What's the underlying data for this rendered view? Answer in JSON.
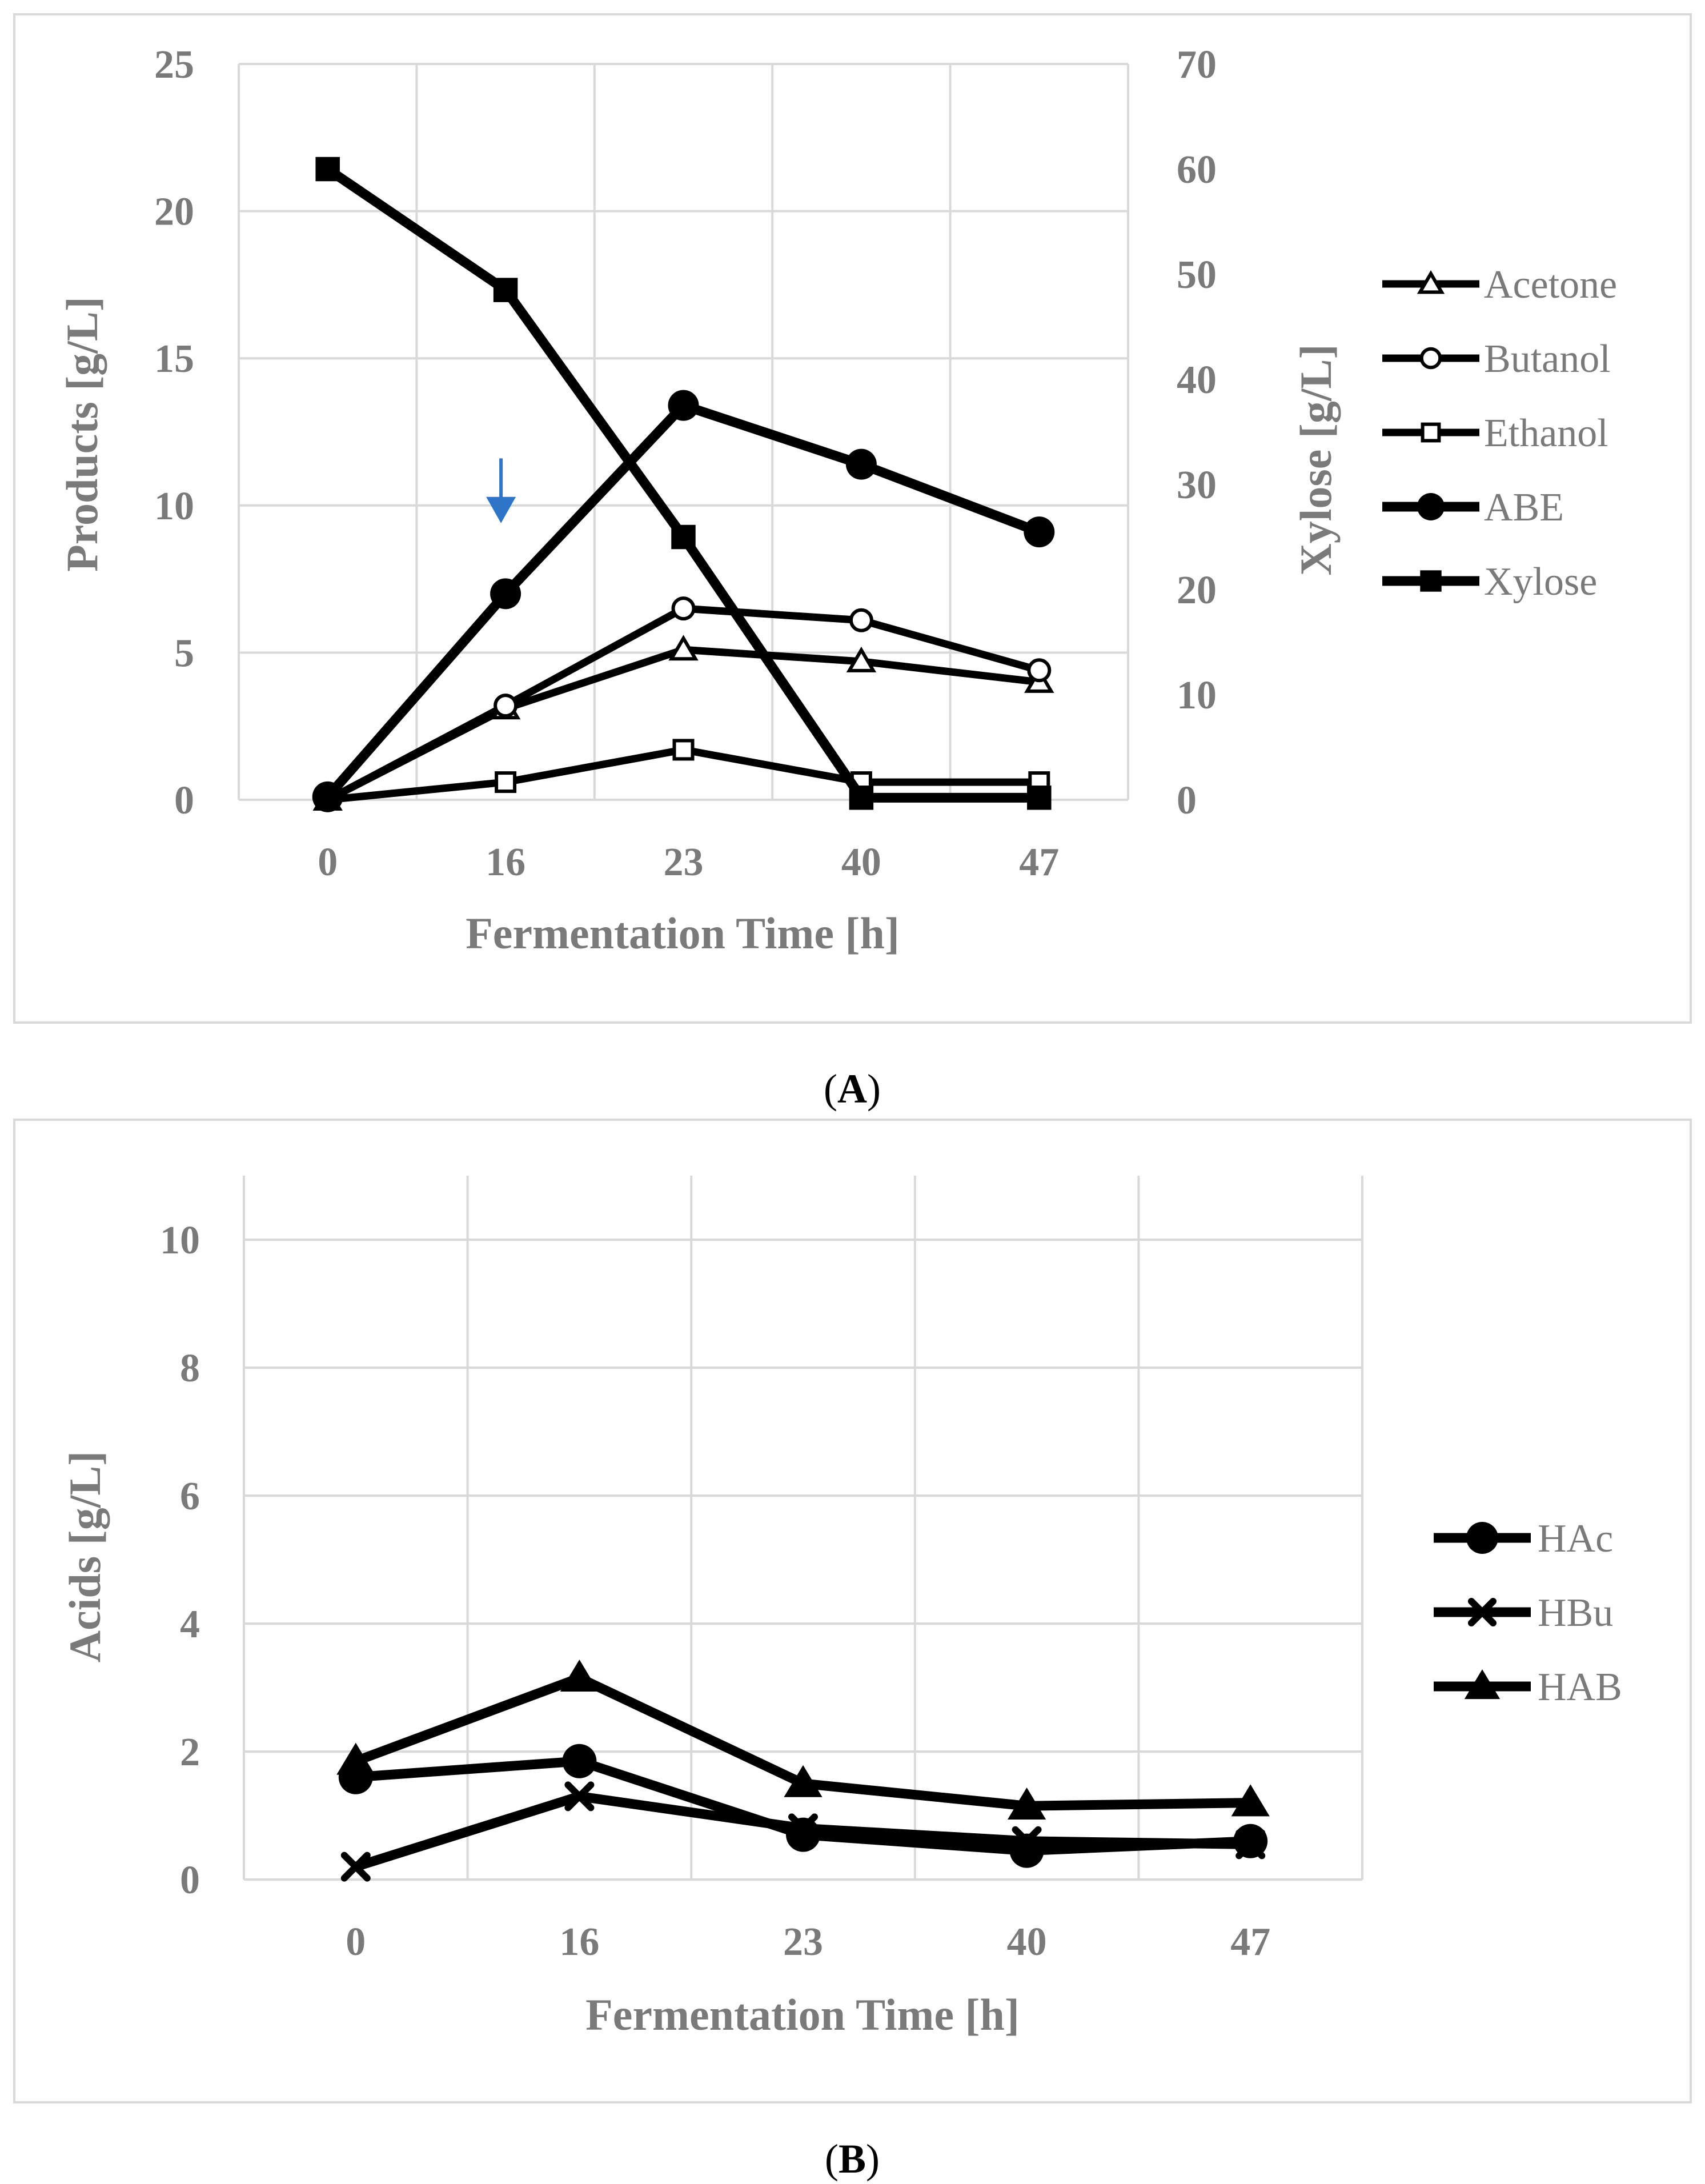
{
  "colors": {
    "series": "#000000",
    "axis_text": "#7a7a7a",
    "grid": "#d9d9d9",
    "arrow": "#2e75c8",
    "background": "#ffffff"
  },
  "panels": [
    {
      "label_open": "(",
      "label_letter": "A",
      "label_close": ")"
    },
    {
      "label_open": "(",
      "label_letter": "B",
      "label_close": ")"
    }
  ],
  "chart_data": [
    {
      "type": "line",
      "title": "",
      "categories": [
        "0",
        "16",
        "23",
        "40",
        "47"
      ],
      "xlabel": "Fermentation Time [h]",
      "ylabel": "Products [g/L]",
      "ylim": [
        0,
        25
      ],
      "yticks": [
        "0",
        "5",
        "10",
        "15",
        "20",
        "25"
      ],
      "y2label": "Xylose [g/L]",
      "y2lim": [
        0,
        70
      ],
      "y2ticks": [
        "0",
        "10",
        "20",
        "30",
        "40",
        "50",
        "60",
        "70"
      ],
      "grid": true,
      "legend": "right",
      "annotation": {
        "icon": "down-arrow-icon",
        "category_index": 1,
        "near_value": 9.5
      },
      "series": [
        {
          "name": "Acetone",
          "marker": "triangle-open",
          "axis": "left",
          "values": [
            0,
            3.1,
            5.1,
            4.7,
            4.0
          ]
        },
        {
          "name": "Butanol",
          "marker": "circle-open",
          "axis": "left",
          "values": [
            0,
            3.2,
            6.5,
            6.1,
            4.4
          ]
        },
        {
          "name": "Ethanol",
          "marker": "square-open",
          "axis": "left",
          "values": [
            0,
            0.6,
            1.7,
            0.6,
            0.6
          ]
        },
        {
          "name": "ABE",
          "marker": "circle-filled",
          "axis": "left",
          "values": [
            0.1,
            7.0,
            13.4,
            11.4,
            9.1
          ]
        },
        {
          "name": "Xylose",
          "marker": "square-filled",
          "axis": "right",
          "values": [
            60,
            48.5,
            25,
            0.2,
            0.2
          ]
        }
      ]
    },
    {
      "type": "line",
      "title": "",
      "categories": [
        "0",
        "16",
        "23",
        "40",
        "47"
      ],
      "xlabel": "Fermentation Time [h]",
      "ylabel": "Acids [g/L]",
      "ylim": [
        0,
        11
      ],
      "yticks": [
        "0",
        "2",
        "4",
        "6",
        "8",
        "10"
      ],
      "grid": true,
      "legend": "right",
      "series": [
        {
          "name": "HAc",
          "marker": "circle-filled",
          "values": [
            1.6,
            1.85,
            0.7,
            0.45,
            0.6
          ]
        },
        {
          "name": "HBu",
          "marker": "x-mark",
          "values": [
            0.2,
            1.3,
            0.8,
            0.6,
            0.55
          ]
        },
        {
          "name": "HAB",
          "marker": "triangle-filled",
          "values": [
            1.85,
            3.15,
            1.5,
            1.15,
            1.2
          ]
        }
      ]
    }
  ]
}
